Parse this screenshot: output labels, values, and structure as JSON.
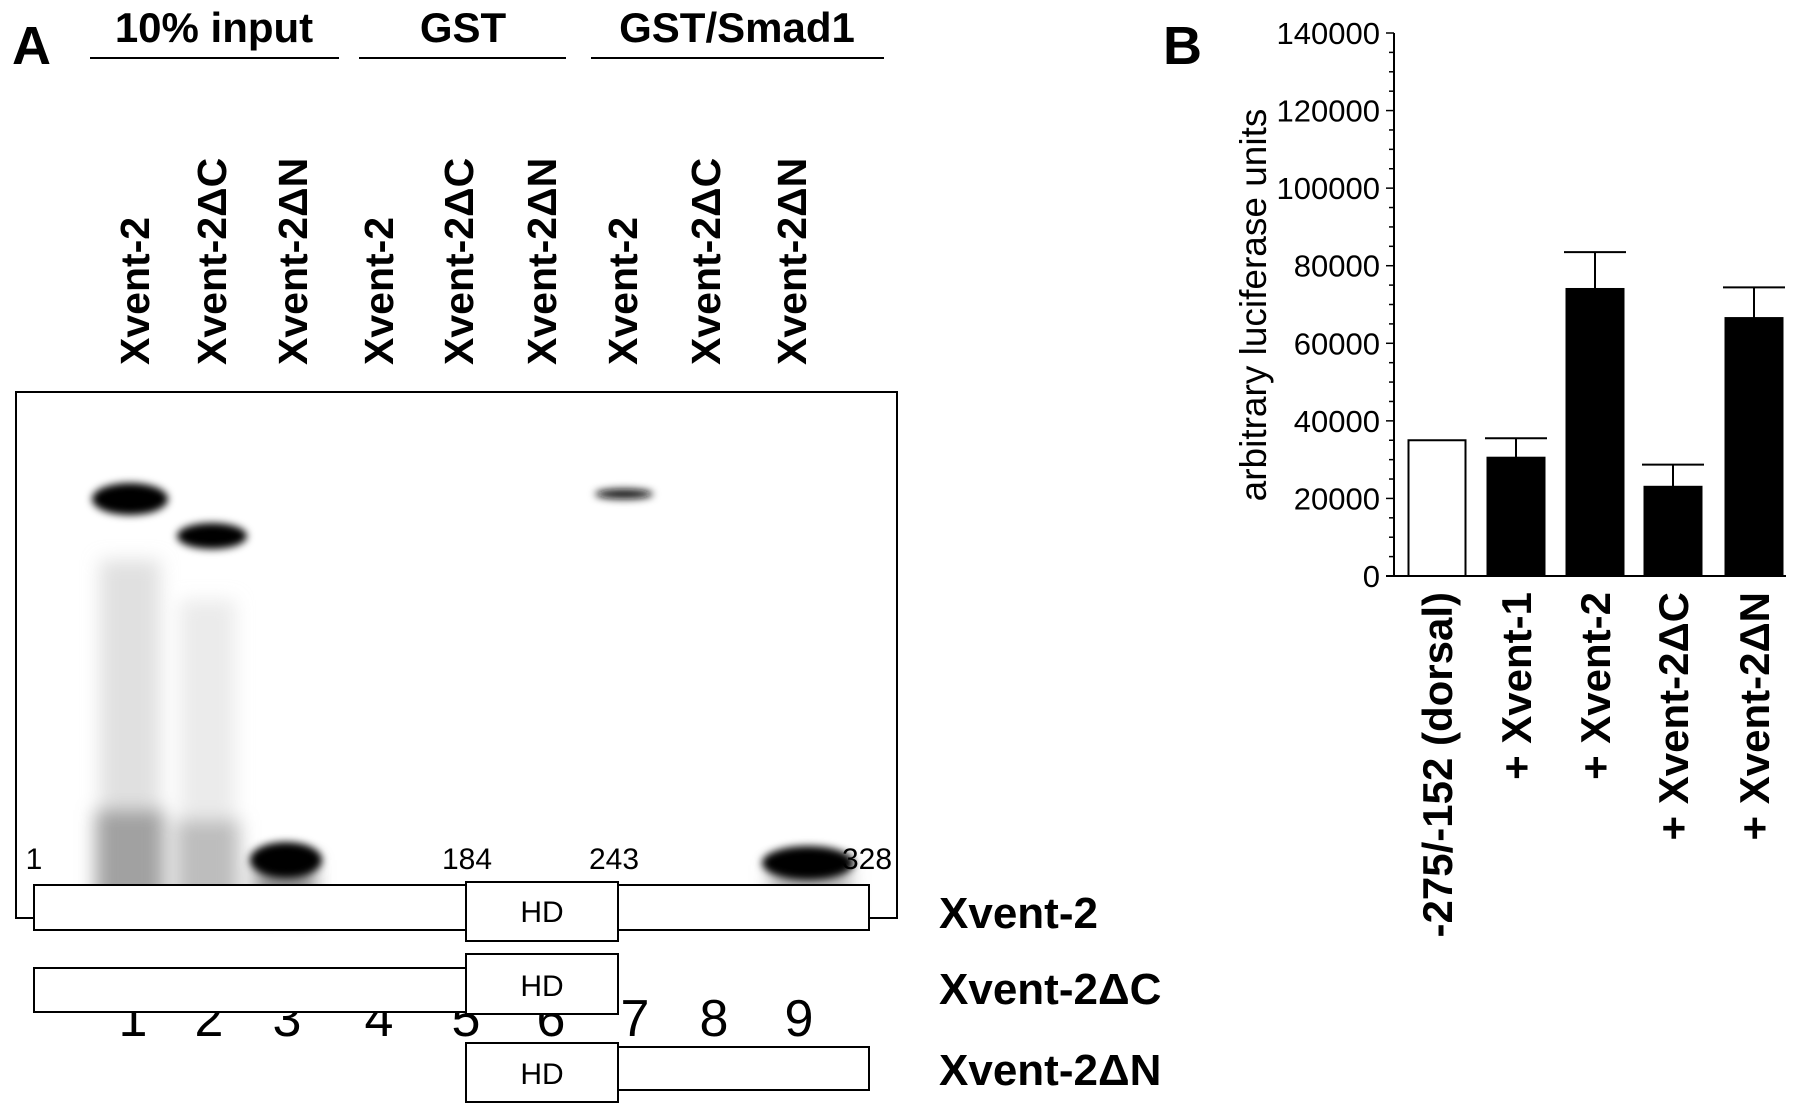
{
  "panel_a": {
    "label": "A",
    "groups": [
      "10% input",
      "GST",
      "GST/Smad1"
    ],
    "lanes": [
      "Xvent-2",
      "Xvent-2ΔC",
      "Xvent-2ΔN",
      "Xvent-2",
      "Xvent-2ΔC",
      "Xvent-2ΔN",
      "Xvent-2",
      "Xvent-2ΔC",
      "Xvent-2ΔN"
    ],
    "lane_numbers": [
      "1",
      "2",
      "3",
      "4",
      "5",
      "6",
      "7",
      "8",
      "9"
    ],
    "domain_map": {
      "positions": [
        "1",
        "184",
        "243",
        "328"
      ],
      "domain_label": "HD",
      "constructs": [
        "Xvent-2",
        "Xvent-2ΔC",
        "Xvent-2ΔN"
      ]
    }
  },
  "chart_data": {
    "label": "B",
    "type": "bar",
    "title": "",
    "xlabel": "",
    "ylabel": "arbitrary luciferase units",
    "ylim": [
      0,
      140000
    ],
    "yticks": [
      "0",
      "20000",
      "40000",
      "60000",
      "80000",
      "100000",
      "120000",
      "140000"
    ],
    "categories": [
      "-275/-152 (dorsal)",
      "+ Xvent-1",
      "+ Xvent-2",
      "+ Xvent-2ΔC",
      "+ Xvent-2ΔN"
    ],
    "values": [
      35000,
      30500,
      74000,
      23000,
      66500
    ],
    "error_upper": [
      null,
      35500,
      83500,
      28700,
      74400
    ],
    "fills": [
      "#ffffff",
      "#000000",
      "#000000",
      "#000000",
      "#000000"
    ]
  }
}
